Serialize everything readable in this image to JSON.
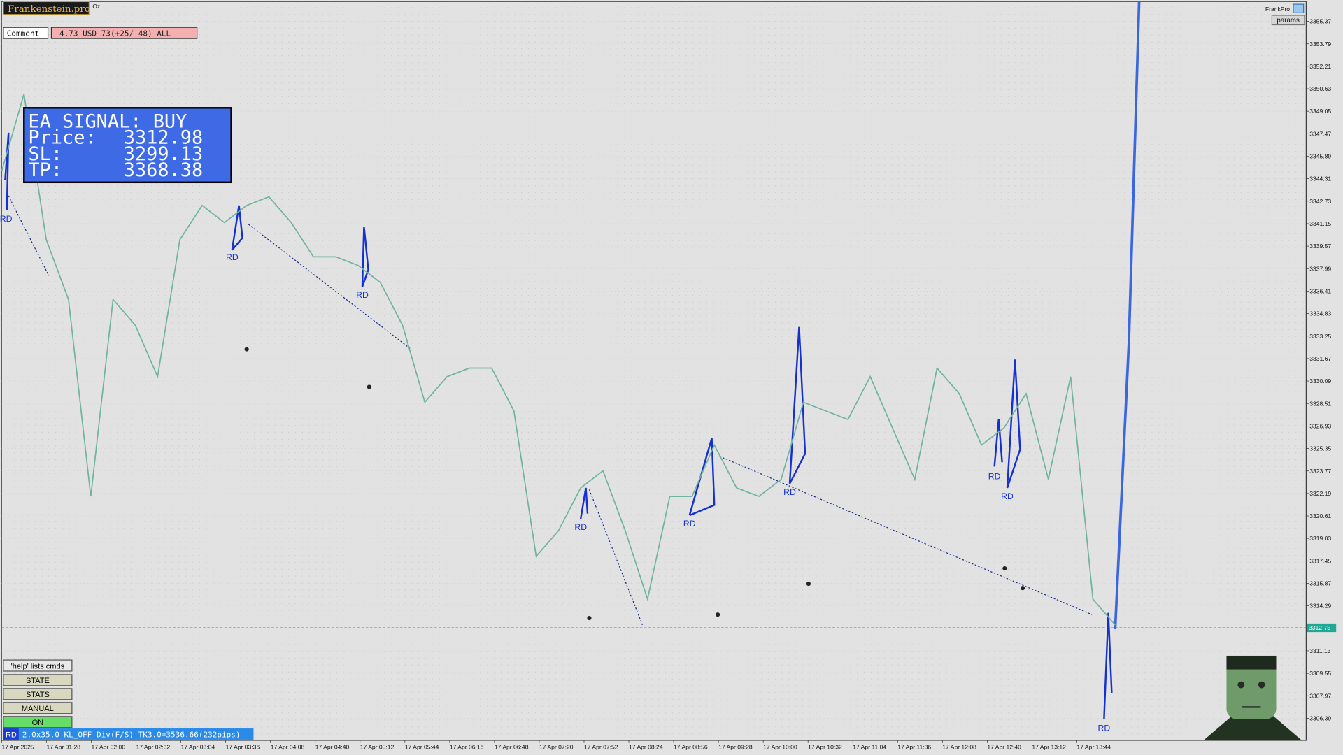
{
  "app": {
    "logo": "Frankenstein.pro",
    "symbol_tag": "Oz",
    "comment_label": "Comment",
    "account_status": "-4.73 USD 73(+25/-48) ALL",
    "brand": "FrankPro",
    "params_button": "params"
  },
  "ea_signal": {
    "title": "EA SIGNAL: BUY",
    "rows": [
      [
        "Price:",
        "3312.98"
      ],
      [
        "SL:",
        "3299.13"
      ],
      [
        "TP:",
        "3368.38"
      ]
    ]
  },
  "controls": {
    "help": "'help' lists cmds",
    "buttons": [
      "STATE",
      "STATS",
      "MANUAL",
      "ON"
    ]
  },
  "status_bar": {
    "tag": "RD",
    "text": "2.0x35.0 KL_OFF Div(F/S) TK3.0=3536.66(232pips)"
  },
  "chart_data": {
    "type": "line",
    "x_labels": [
      "17 Apr 2025",
      "17 Apr 01:28",
      "17 Apr 02:00",
      "17 Apr 02:32",
      "17 Apr 03:04",
      "17 Apr 03:36",
      "17 Apr 04:08",
      "17 Apr 04:40",
      "17 Apr 05:12",
      "17 Apr 05:44",
      "17 Apr 06:16",
      "17 Apr 06:48",
      "17 Apr 07:20",
      "17 Apr 07:52",
      "17 Apr 08:24",
      "17 Apr 08:56",
      "17 Apr 09:28",
      "17 Apr 10:00",
      "17 Apr 10:32",
      "17 Apr 11:04",
      "17 Apr 11:36",
      "17 Apr 12:08",
      "17 Apr 12:40",
      "17 Apr 13:12",
      "17 Apr 13:44"
    ],
    "series": [
      {
        "color": "#6fb3a0",
        "values": [
          3344.84,
          3350.26,
          3340.03,
          3335.82,
          3321.98,
          3335.82,
          3334.01,
          3330.4,
          3340.03,
          3342.43,
          3341.23,
          3342.43,
          3343.04,
          3341.23,
          3338.82,
          3338.82,
          3338.22,
          3337.02,
          3334.01,
          3328.6,
          3330.4,
          3331.0,
          3331.0,
          3327.99,
          3317.77,
          3319.57,
          3322.58,
          3323.78,
          3319.57,
          3314.76,
          3321.98,
          3321.98,
          3325.59,
          3322.58,
          3321.98,
          3323.18,
          3328.6,
          3327.99,
          3327.39,
          3330.4,
          3326.79,
          3323.18,
          3331.0,
          3329.2,
          3325.59,
          3326.79,
          3329.2,
          3323.18,
          3330.4,
          3314.76,
          3312.95
        ]
      }
    ],
    "ylim": [
      3304.83,
      3356.75
    ],
    "yticks": [
      3355.37,
      3353.79,
      3352.21,
      3350.63,
      3349.05,
      3347.47,
      3345.89,
      3344.31,
      3342.73,
      3341.15,
      3339.57,
      3337.99,
      3336.41,
      3334.83,
      3333.25,
      3331.67,
      3330.09,
      3328.51,
      3326.93,
      3325.35,
      3323.77,
      3322.19,
      3320.61,
      3319.03,
      3317.45,
      3315.87,
      3314.29,
      3311.13,
      3309.55,
      3307.97,
      3306.39
    ],
    "current_price": {
      "value": 3312.75,
      "color": "#20a896"
    },
    "grid": true,
    "annotations": [
      "RD",
      "RD",
      "RD",
      "RD",
      "RD",
      "RD",
      "RD",
      "RD",
      "RD"
    ]
  }
}
